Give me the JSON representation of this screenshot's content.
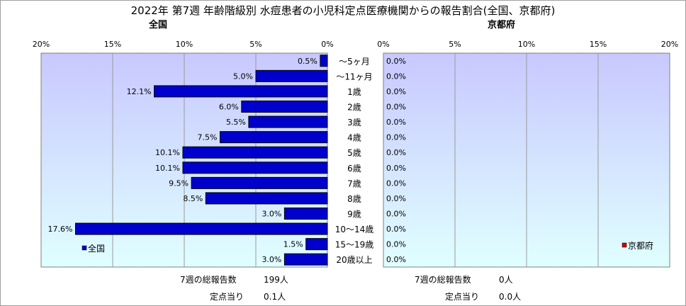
{
  "title": "2022年 第7週 年齢階級別 水痘患者の小児科定点医療機関からの報告割合(全国、京都府)",
  "colors": {
    "national_bar": "#0000cc",
    "kyoto_bar": "#cc0000",
    "plot_bg_top": "#c8c8ff",
    "plot_bg_bottom": "#e0ffff"
  },
  "chart_data": [
    {
      "type": "bar",
      "orientation": "horizontal",
      "direction": "right-to-left",
      "title": "全国",
      "categories": [
        "～5ヶ月",
        "～11ヶ月",
        "1歳",
        "2歳",
        "3歳",
        "4歳",
        "5歳",
        "6歳",
        "7歳",
        "8歳",
        "9歳",
        "10～14歳",
        "15～19歳",
        "20歳以上"
      ],
      "series": [
        {
          "name": "全国",
          "values": [
            0.5,
            5.0,
            12.1,
            6.0,
            5.5,
            7.5,
            10.1,
            10.1,
            9.5,
            8.5,
            3.0,
            17.6,
            1.5,
            3.0
          ]
        }
      ],
      "data_labels": [
        "0.5%",
        "5.0%",
        "12.1%",
        "6.0%",
        "5.5%",
        "7.5%",
        "10.1%",
        "10.1%",
        "9.5%",
        "8.5%",
        "3.0%",
        "17.6%",
        "1.5%",
        "3.0%"
      ],
      "xlim": [
        0,
        20
      ],
      "tick_labels": [
        "20%",
        "15%",
        "10%",
        "5%",
        "0%"
      ],
      "grid": true,
      "legend": "bottom-left"
    },
    {
      "type": "bar",
      "orientation": "horizontal",
      "direction": "left-to-right",
      "title": "京都府",
      "categories": [
        "～5ヶ月",
        "～11ヶ月",
        "1歳",
        "2歳",
        "3歳",
        "4歳",
        "5歳",
        "6歳",
        "7歳",
        "8歳",
        "9歳",
        "10～14歳",
        "15～19歳",
        "20歳以上"
      ],
      "series": [
        {
          "name": "京都府",
          "values": [
            0,
            0,
            0,
            0,
            0,
            0,
            0,
            0,
            0,
            0,
            0,
            0,
            0,
            0
          ]
        }
      ],
      "data_labels": [
        "0.0%",
        "0.0%",
        "0.0%",
        "0.0%",
        "0.0%",
        "0.0%",
        "0.0%",
        "0.0%",
        "0.0%",
        "0.0%",
        "0.0%",
        "0.0%",
        "0.0%",
        "0.0%"
      ],
      "xlim": [
        0,
        20
      ],
      "tick_labels": [
        "0%",
        "5%",
        "10%",
        "15%",
        "20%"
      ],
      "grid": true,
      "legend": "bottom-right"
    }
  ],
  "footer": {
    "national_total_label": "7週の総報告数",
    "national_total_value": "199人",
    "national_per_label": "定点当り",
    "national_per_value": "0.1人",
    "kyoto_total_label": "7週の総報告数",
    "kyoto_total_value": "0人",
    "kyoto_per_label": "定点当り",
    "kyoto_per_value": "0.0人"
  }
}
